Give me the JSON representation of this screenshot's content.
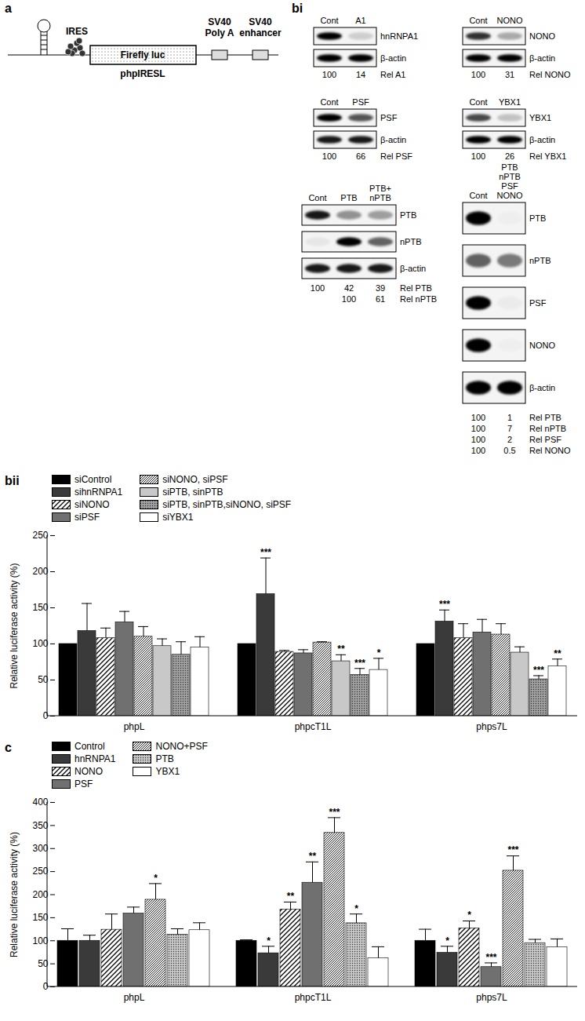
{
  "diagram": {
    "label": "a",
    "ires": "IRES",
    "reporter": "Firefly luc",
    "construct": "phpIRESL",
    "elements": [
      [
        "SV40",
        "Poly A"
      ],
      [
        "SV40",
        "enhancer"
      ]
    ]
  },
  "blots": {
    "label": "bi",
    "panels": [
      {
        "lanes": [
          [
            "Cont"
          ],
          [
            "A1"
          ]
        ],
        "rows": [
          {
            "label": "hnRNPA1",
            "bands": [
              1,
              0.15
            ]
          },
          {
            "label": "β-actin",
            "bands": [
              1,
              1
            ]
          }
        ],
        "quant": [
          {
            "values": [
              100,
              14
            ],
            "label": "Rel A1"
          }
        ]
      },
      {
        "lanes": [
          [
            "Cont"
          ],
          [
            "NONO"
          ]
        ],
        "rows": [
          {
            "label": "NONO",
            "bands": [
              0.8,
              0.3
            ]
          },
          {
            "label": "β-actin",
            "bands": [
              1,
              1
            ]
          }
        ],
        "quant": [
          {
            "values": [
              100,
              31
            ],
            "label": "Rel NONO"
          }
        ]
      },
      {
        "lanes": [
          [
            "Cont"
          ],
          [
            "PSF"
          ]
        ],
        "rows": [
          {
            "label": "PSF",
            "bands": [
              1,
              0.65
            ]
          },
          {
            "label": "β-actin",
            "bands": [
              0.9,
              0.9
            ]
          }
        ],
        "quant": [
          {
            "values": [
              100,
              66
            ],
            "label": "Rel PSF"
          }
        ]
      },
      {
        "lanes": [
          [
            "Cont"
          ],
          [
            "YBX1"
          ]
        ],
        "rows": [
          {
            "label": "YBX1",
            "bands": [
              0.7,
              0.2
            ]
          },
          {
            "label": "β-actin",
            "bands": [
              1,
              1
            ]
          }
        ],
        "quant": [
          {
            "values": [
              100,
              26
            ],
            "label": "Rel YBX1"
          }
        ]
      },
      {
        "lanes": [
          [
            "Cont"
          ],
          [
            "PTB"
          ],
          [
            "PTB+",
            "nPTB"
          ]
        ],
        "rows": [
          {
            "label": "PTB",
            "bands": [
              0.9,
              0.4,
              0.35
            ]
          },
          {
            "label": "nPTB",
            "bands": [
              0.05,
              1,
              0.6
            ]
          },
          {
            "label": "β-actin",
            "bands": [
              0.9,
              0.9,
              0.9
            ]
          }
        ],
        "quant": [
          {
            "values": [
              100,
              42,
              39
            ],
            "label": "Rel PTB"
          },
          {
            "values": [
              null,
              100,
              61
            ],
            "label": "Rel nPTB"
          }
        ]
      },
      {
        "lanes": [
          [
            "Cont"
          ],
          [
            "PTB",
            "nPTB",
            "PSF",
            "NONO"
          ]
        ],
        "rows": [
          {
            "label": "PTB",
            "bands": [
              1,
              0.02
            ]
          },
          {
            "label": "nPTB",
            "bands": [
              0.6,
              0.5
            ]
          },
          {
            "label": "PSF",
            "bands": [
              1,
              0.03
            ]
          },
          {
            "label": "NONO",
            "bands": [
              1,
              0.02
            ]
          },
          {
            "label": "β-actin",
            "bands": [
              1,
              1
            ]
          }
        ],
        "quant": [
          {
            "values": [
              100,
              1
            ],
            "label": "Rel PTB"
          },
          {
            "values": [
              100,
              7
            ],
            "label": "Rel nPTB"
          },
          {
            "values": [
              100,
              2
            ],
            "label": "Rel PSF"
          },
          {
            "values": [
              100,
              0.5
            ],
            "label": "Rel NONO"
          }
        ]
      }
    ]
  },
  "chart_data": [
    {
      "type": "bar",
      "panel": "bii",
      "categories": [
        "phpL",
        "phpcT1L",
        "phps7L"
      ],
      "ylabel": "Relative luciferase activity (%)",
      "ylim": [
        0,
        250
      ],
      "yticks": [
        0,
        50,
        100,
        150,
        200,
        250
      ],
      "legend": "top",
      "series": [
        {
          "name": "siControl",
          "color": "#000000",
          "values": [
            100,
            100,
            100
          ],
          "errors": [
            0,
            0,
            0
          ],
          "significance": [
            null,
            null,
            null
          ]
        },
        {
          "name": "sihnRNPA1",
          "color": "#3a3a3a",
          "values": [
            118,
            169,
            131
          ],
          "errors": [
            38,
            50,
            16
          ],
          "significance": [
            null,
            "***",
            "***"
          ]
        },
        {
          "name": "siNONO",
          "color": "#ffffff",
          "values": [
            108,
            89,
            108
          ],
          "errors": [
            14,
            2,
            20
          ],
          "significance": [
            null,
            null,
            null
          ]
        },
        {
          "name": "siPSF",
          "color": "#707070",
          "values": [
            130,
            87,
            116
          ],
          "errors": [
            15,
            5,
            18
          ],
          "significance": [
            null,
            null,
            null
          ]
        },
        {
          "name": "siNONO, siPSF",
          "color": "#ffffff",
          "values": [
            110,
            102,
            113
          ],
          "errors": [
            14,
            1,
            15
          ],
          "significance": [
            null,
            null,
            null
          ]
        },
        {
          "name": "siPTB, sinPTB",
          "color": "#c8c8c8",
          "values": [
            97,
            76,
            88
          ],
          "errors": [
            10,
            9,
            8
          ],
          "significance": [
            null,
            "**",
            null
          ]
        },
        {
          "name": "siPTB, sinPTB,siNONO, siPSF",
          "color": "#a0a0a0",
          "values": [
            85,
            57,
            51
          ],
          "errors": [
            18,
            9,
            5
          ],
          "significance": [
            null,
            "***",
            "***"
          ]
        },
        {
          "name": "siYBX1",
          "color": "#ffffff",
          "values": [
            95,
            64,
            69
          ],
          "errors": [
            15,
            16,
            10
          ],
          "significance": [
            null,
            "*",
            "**"
          ]
        }
      ]
    },
    {
      "type": "bar",
      "panel": "c",
      "categories": [
        "phpL",
        "phpcT1L",
        "phps7L"
      ],
      "ylabel": "Relative luciferase activity (%)",
      "ylim": [
        0,
        400
      ],
      "yticks": [
        0,
        50,
        100,
        150,
        200,
        250,
        300,
        350,
        400
      ],
      "legend": "top",
      "series": [
        {
          "name": "Control",
          "color": "#000000",
          "values": [
            100,
            100,
            100
          ],
          "errors": [
            26,
            2,
            25
          ],
          "significance": [
            null,
            null,
            null
          ]
        },
        {
          "name": "hnRNPA1",
          "color": "#3a3a3a",
          "values": [
            100,
            73,
            74
          ],
          "errors": [
            12,
            15,
            14
          ],
          "significance": [
            null,
            "*",
            "*"
          ]
        },
        {
          "name": "NONO",
          "color": "#ffffff",
          "values": [
            124,
            168,
            127
          ],
          "errors": [
            34,
            16,
            16
          ],
          "significance": [
            null,
            "**",
            "*"
          ]
        },
        {
          "name": "PSF",
          "color": "#707070",
          "values": [
            159,
            226,
            43
          ],
          "errors": [
            14,
            45,
            9
          ],
          "significance": [
            null,
            "**",
            "***"
          ]
        },
        {
          "name": "NONO+PSF",
          "color": "#ffffff",
          "values": [
            189,
            334,
            252
          ],
          "errors": [
            35,
            33,
            32
          ],
          "significance": [
            "*",
            "***",
            "***"
          ]
        },
        {
          "name": "PTB",
          "color": "#c8c8c8",
          "values": [
            113,
            138,
            95
          ],
          "errors": [
            13,
            20,
            8
          ],
          "significance": [
            null,
            "*",
            null
          ]
        },
        {
          "name": "YBX1",
          "color": "#ffffff",
          "values": [
            123,
            62,
            86
          ],
          "errors": [
            16,
            25,
            18
          ],
          "significance": [
            null,
            null,
            null
          ]
        }
      ]
    }
  ]
}
